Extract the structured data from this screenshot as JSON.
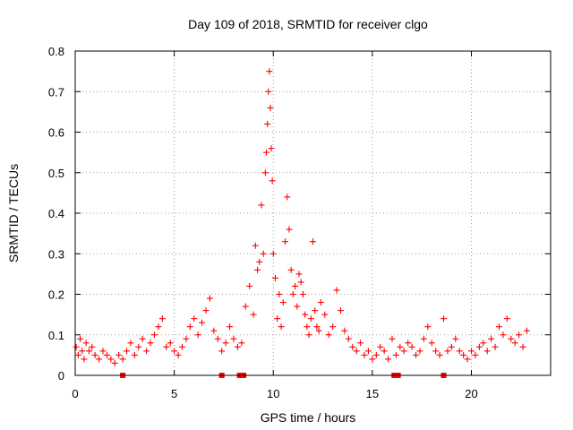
{
  "chart_data": {
    "type": "scatter",
    "title": "Day 109 of 2018, SRMTID for receiver clgo",
    "xlabel": "GPS time / hours",
    "ylabel": "SRMTID / TECUs",
    "xlim": [
      0,
      24
    ],
    "ylim": [
      0,
      0.8
    ],
    "xticks": [
      0,
      5,
      10,
      15,
      20
    ],
    "yticks": [
      0,
      0.1,
      0.2,
      0.3,
      0.4,
      0.5,
      0.6,
      0.7,
      0.8
    ],
    "xtick_labels": [
      "0",
      "5",
      "10",
      "15",
      "20"
    ],
    "ytick_labels": [
      "0",
      "0.1",
      "0.2",
      "0.3",
      "0.4",
      "0.5",
      "0.6",
      "0.7",
      "0.8"
    ],
    "grid": true,
    "marker": "+",
    "marker_color": "#ff0000",
    "series": [
      {
        "name": "SRMTID",
        "x": [
          0.05,
          0.15,
          0.25,
          0.35,
          0.45,
          0.55,
          0.7,
          0.85,
          1.0,
          1.2,
          1.4,
          1.6,
          1.8,
          2.0,
          2.2,
          2.4,
          2.6,
          2.8,
          3.0,
          3.2,
          3.4,
          3.6,
          3.8,
          4.0,
          4.2,
          4.4,
          4.6,
          4.8,
          5.0,
          5.2,
          5.4,
          5.6,
          5.8,
          6.0,
          6.2,
          6.4,
          6.6,
          6.8,
          7.0,
          7.2,
          7.4,
          7.6,
          7.8,
          8.0,
          8.2,
          8.4,
          8.6,
          8.8,
          9.0,
          9.1,
          9.2,
          9.3,
          9.4,
          9.5,
          9.6,
          9.65,
          9.7,
          9.75,
          9.8,
          9.85,
          9.9,
          9.95,
          10.0,
          10.1,
          10.2,
          10.3,
          10.4,
          10.5,
          10.6,
          10.7,
          10.8,
          10.9,
          11.0,
          11.1,
          11.2,
          11.3,
          11.4,
          11.5,
          11.6,
          11.7,
          11.8,
          11.9,
          12.0,
          12.1,
          12.2,
          12.3,
          12.4,
          12.6,
          12.8,
          13.0,
          13.2,
          13.4,
          13.6,
          13.8,
          14.0,
          14.2,
          14.4,
          14.6,
          14.8,
          15.0,
          15.2,
          15.4,
          15.6,
          15.8,
          16.0,
          16.2,
          16.4,
          16.6,
          16.8,
          17.0,
          17.2,
          17.4,
          17.6,
          17.8,
          18.0,
          18.2,
          18.4,
          18.6,
          18.8,
          19.0,
          19.2,
          19.4,
          19.6,
          19.8,
          20.0,
          20.2,
          20.4,
          20.6,
          20.8,
          21.0,
          21.2,
          21.4,
          21.6,
          21.8,
          22.0,
          22.2,
          22.4,
          22.6,
          22.8
        ],
        "y": [
          0.07,
          0.05,
          0.09,
          0.06,
          0.04,
          0.08,
          0.06,
          0.07,
          0.05,
          0.04,
          0.06,
          0.05,
          0.04,
          0.03,
          0.05,
          0.04,
          0.06,
          0.08,
          0.05,
          0.07,
          0.09,
          0.06,
          0.08,
          0.1,
          0.12,
          0.14,
          0.07,
          0.08,
          0.06,
          0.05,
          0.07,
          0.09,
          0.12,
          0.14,
          0.1,
          0.13,
          0.16,
          0.19,
          0.11,
          0.09,
          0.06,
          0.08,
          0.12,
          0.09,
          0.07,
          0.08,
          0.17,
          0.22,
          0.15,
          0.32,
          0.26,
          0.28,
          0.42,
          0.3,
          0.5,
          0.55,
          0.62,
          0.7,
          0.75,
          0.66,
          0.56,
          0.48,
          0.3,
          0.24,
          0.14,
          0.2,
          0.12,
          0.18,
          0.33,
          0.44,
          0.36,
          0.26,
          0.2,
          0.22,
          0.17,
          0.25,
          0.23,
          0.2,
          0.15,
          0.12,
          0.1,
          0.14,
          0.33,
          0.16,
          0.12,
          0.11,
          0.18,
          0.15,
          0.1,
          0.12,
          0.21,
          0.16,
          0.11,
          0.09,
          0.07,
          0.06,
          0.08,
          0.05,
          0.06,
          0.04,
          0.05,
          0.07,
          0.06,
          0.04,
          0.09,
          0.05,
          0.07,
          0.06,
          0.08,
          0.07,
          0.05,
          0.06,
          0.09,
          0.12,
          0.08,
          0.06,
          0.05,
          0.14,
          0.06,
          0.07,
          0.09,
          0.06,
          0.05,
          0.04,
          0.06,
          0.05,
          0.07,
          0.08,
          0.06,
          0.09,
          0.07,
          0.12,
          0.1,
          0.14,
          0.09,
          0.08,
          0.1,
          0.07,
          0.11
        ]
      }
    ],
    "zero_markers_x": [
      2.4,
      7.4,
      8.3,
      8.5,
      16.1,
      16.3,
      18.6
    ]
  }
}
